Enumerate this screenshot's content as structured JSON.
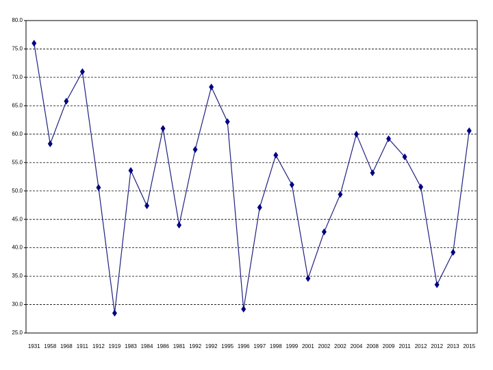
{
  "chart_data": {
    "type": "line",
    "categories": [
      "1931",
      "1958",
      "1968",
      "1911",
      "1912",
      "1919",
      "1983",
      "1984",
      "1986",
      "1981",
      "1992",
      "1992",
      "1995",
      "1996",
      "1997",
      "1998",
      "1999",
      "2001",
      "2002",
      "2002",
      "2004",
      "2008",
      "2009",
      "2011",
      "2012",
      "2012",
      "2013",
      "2015"
    ],
    "values": [
      76.0,
      58.3,
      65.8,
      71.0,
      50.6,
      28.5,
      53.6,
      47.4,
      61.0,
      44.0,
      57.3,
      68.3,
      62.2,
      29.2,
      47.1,
      56.3,
      51.1,
      34.6,
      42.8,
      49.4,
      60.0,
      53.2,
      59.2,
      56.0,
      50.7,
      33.5,
      39.2,
      60.6
    ],
    "color": "#000080",
    "ylim": [
      25,
      80
    ],
    "yticks": [
      {
        "value": 25,
        "label": "25.0"
      },
      {
        "value": 30,
        "label": "30.0"
      },
      {
        "value": 35,
        "label": "35.0"
      },
      {
        "value": 40,
        "label": "40.0"
      },
      {
        "value": 45,
        "label": "45.0"
      },
      {
        "value": 50,
        "label": "50.0"
      },
      {
        "value": 55,
        "label": "55.0"
      },
      {
        "value": 60,
        "label": "60.0"
      },
      {
        "value": 65,
        "label": "65.0"
      },
      {
        "value": 70,
        "label": "70.0"
      },
      {
        "value": 75,
        "label": "75.0"
      },
      {
        "value": 80,
        "label": "80.0"
      }
    ],
    "grid": true
  }
}
